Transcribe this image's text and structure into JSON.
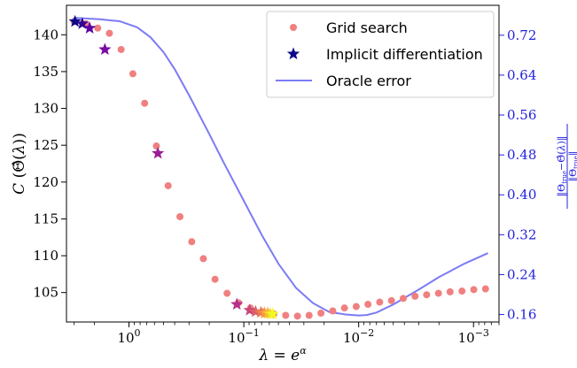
{
  "chart_data": {
    "type": "scatter",
    "xlabel": "λ = e^α",
    "ylabel": "C(Θ̂(λ))",
    "ylabel_right": "‖Θtrue − Θ̂(λ)‖ / ‖Θtrue‖",
    "x_scale": "log",
    "x_reversed": true,
    "xlim": [
      3.5,
      0.0006
    ],
    "ylim": [
      101,
      144
    ],
    "ylim_right": [
      0.145,
      0.78
    ],
    "x_ticks": [
      {
        "value": 1,
        "base": "10",
        "exp": "0"
      },
      {
        "value": 0.1,
        "base": "10",
        "exp": "−1"
      },
      {
        "value": 0.01,
        "base": "10",
        "exp": "−2"
      },
      {
        "value": 0.001,
        "base": "10",
        "exp": "−3"
      }
    ],
    "y_ticks": [
      105,
      110,
      115,
      120,
      125,
      130,
      135,
      140
    ],
    "y_ticks_right": [
      "0.16",
      "0.24",
      "0.32",
      "0.40",
      "0.48",
      "0.56",
      "0.64",
      "0.72"
    ],
    "legend": {
      "position": "top-right",
      "entries": [
        "Grid search",
        "Implicit differentiation",
        "Oracle error"
      ]
    },
    "colors": {
      "grid_search": "#f08080",
      "oracle": "#7b7bf5",
      "right_axis": "#2222dd",
      "implicit_start": "#0d0887",
      "implicit_end": "#f0f921"
    },
    "series": [
      {
        "name": "Grid search",
        "type": "scatter",
        "axis": "left",
        "x": [
          3.0,
          2.37,
          1.87,
          1.48,
          1.17,
          0.924,
          0.73,
          0.577,
          0.456,
          0.36,
          0.284,
          0.225,
          0.178,
          0.14,
          0.111,
          0.0876,
          0.0692,
          0.0547,
          0.0432,
          0.0341,
          0.027,
          0.0213,
          0.0168,
          0.0133,
          0.0105,
          0.0083,
          0.00656,
          0.00518,
          0.00409,
          0.00323,
          0.00256,
          0.00202,
          0.0016,
          0.00126,
          0.000995,
          0.000786
        ],
        "y": [
          141.8,
          141.5,
          140.9,
          140.2,
          138.0,
          134.7,
          130.7,
          124.9,
          119.5,
          115.3,
          111.9,
          109.6,
          106.8,
          104.9,
          103.6,
          102.9,
          102.4,
          102.1,
          101.9,
          101.8,
          101.9,
          102.2,
          102.5,
          102.9,
          103.1,
          103.4,
          103.7,
          103.9,
          104.2,
          104.5,
          104.7,
          104.9,
          105.1,
          105.2,
          105.4,
          105.5
        ]
      },
      {
        "name": "Implicit differentiation",
        "type": "scatter",
        "marker": "star",
        "axis": "left",
        "x": [
          2.95,
          2.55,
          2.2,
          1.62,
          0.56,
          0.115,
          0.089,
          0.079,
          0.071,
          0.066,
          0.062,
          0.059,
          0.056
        ],
        "y": [
          141.8,
          141.5,
          140.9,
          138.0,
          123.9,
          103.4,
          102.6,
          102.4,
          102.3,
          102.2,
          102.2,
          102.1,
          102.1
        ]
      },
      {
        "name": "Oracle error",
        "type": "line",
        "axis": "right",
        "x": [
          3.0,
          1.8,
          1.2,
          0.85,
          0.65,
          0.5,
          0.4,
          0.3,
          0.2,
          0.15,
          0.1,
          0.07,
          0.05,
          0.035,
          0.025,
          0.018,
          0.013,
          0.01,
          0.0085,
          0.007,
          0.005,
          0.003,
          0.002,
          0.0012,
          0.00075
        ],
        "y": [
          0.755,
          0.752,
          0.748,
          0.736,
          0.716,
          0.686,
          0.652,
          0.6,
          0.522,
          0.465,
          0.388,
          0.32,
          0.262,
          0.213,
          0.183,
          0.165,
          0.16,
          0.158,
          0.159,
          0.164,
          0.18,
          0.21,
          0.235,
          0.262,
          0.283
        ]
      }
    ]
  }
}
